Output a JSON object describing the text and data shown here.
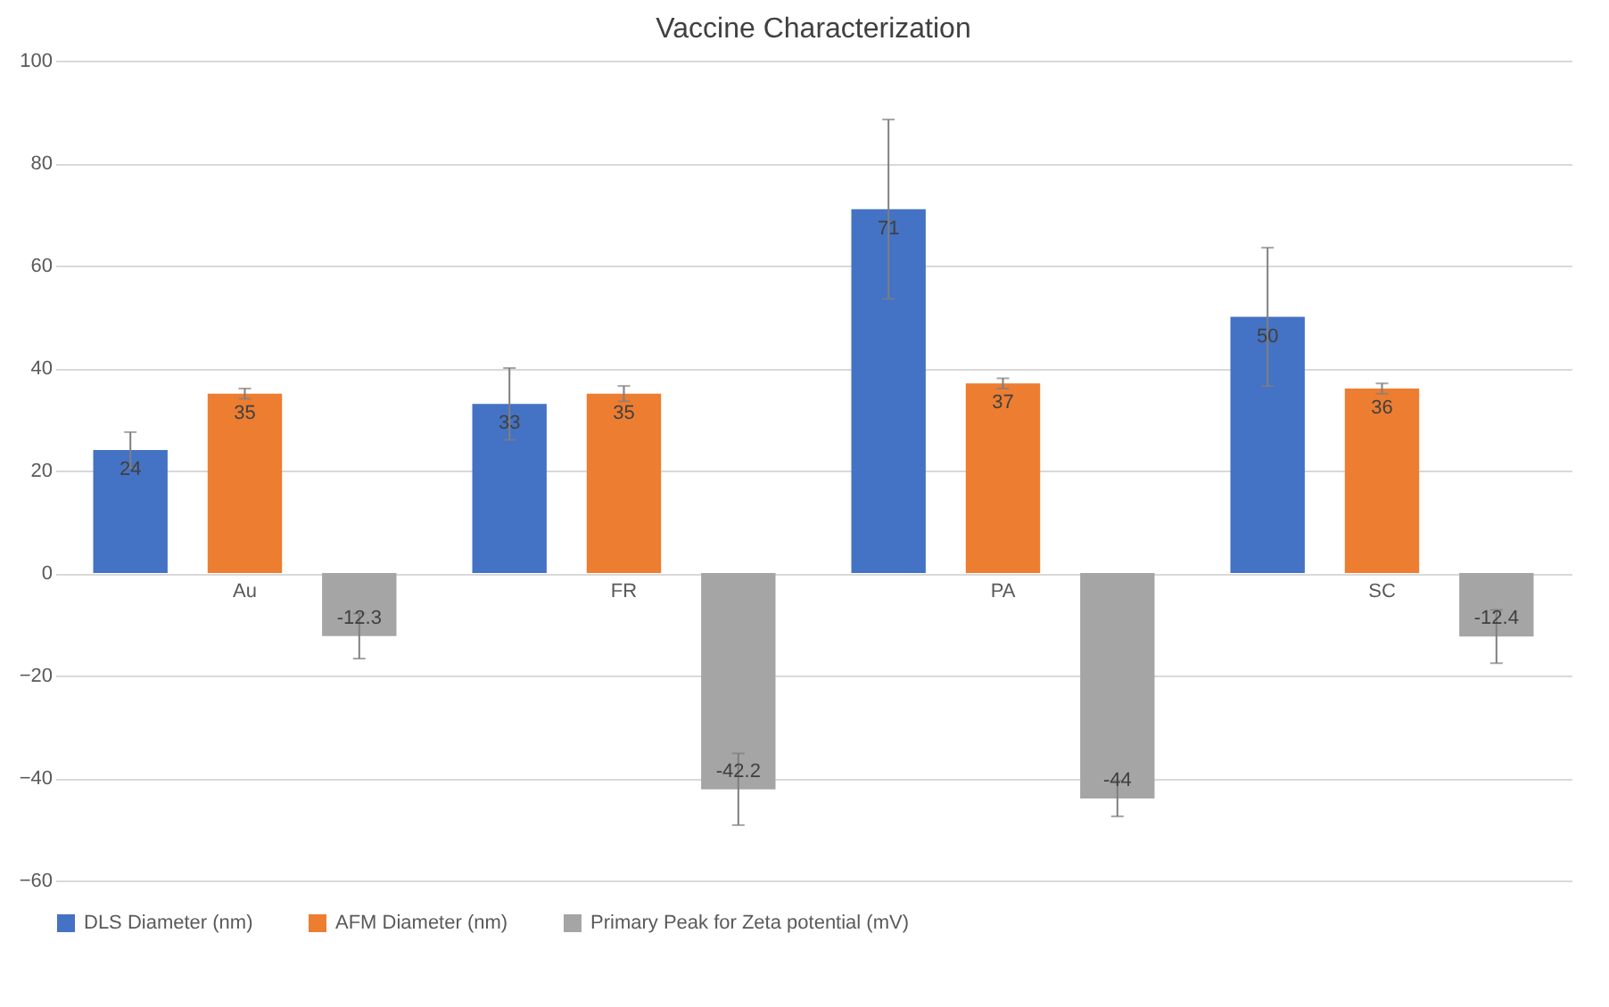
{
  "chart_data": {
    "type": "bar",
    "title": "Vaccine Characterization",
    "categories": [
      "Au",
      "FR",
      "PA",
      "SC"
    ],
    "series": [
      {
        "name": "DLS Diameter (nm)",
        "color": "#4472c4",
        "values": [
          24,
          33,
          71,
          50
        ],
        "errors": [
          3.5,
          7,
          17.5,
          13.5
        ]
      },
      {
        "name": "AFM Diameter (nm)",
        "color": "#ed7d31",
        "values": [
          35,
          35,
          37,
          36
        ],
        "errors": [
          1,
          1.5,
          1,
          1
        ]
      },
      {
        "name": "Primary Peak for Zeta potential (mV)",
        "color": "#a5a5a5",
        "values": [
          -12.3,
          -42.2,
          -44,
          -12.4
        ],
        "errors": [
          4.4,
          7,
          3.5,
          5.2
        ]
      }
    ],
    "ylim": [
      -60,
      100
    ],
    "yticks": [
      -60,
      -40,
      -20,
      0,
      20,
      40,
      60,
      80,
      100
    ],
    "grid": "y",
    "legend": "bottom",
    "data_labels": true
  }
}
